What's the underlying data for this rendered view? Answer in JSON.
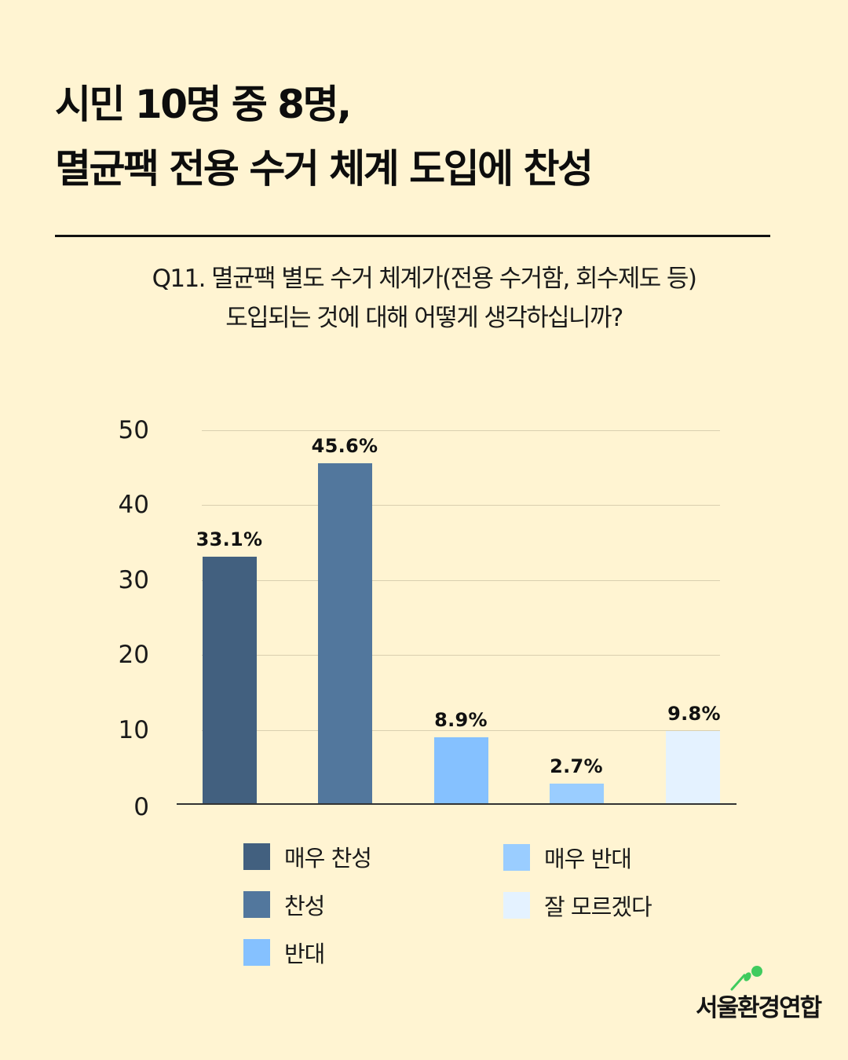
{
  "header": {
    "title_lines": [
      "시민 10명 중 8명,",
      "멸균팩 전용 수거 체계 도입에 찬성"
    ]
  },
  "question": {
    "lines": [
      "Q11. 멸균팩 별도 수거 체계가(전용 수거함, 회수제도 등)",
      "도입되는 것에 대해 어떻게 생각하십니까?"
    ]
  },
  "colors": {
    "background": "#FFF4D2",
    "strongly_agree": "#42607F",
    "agree": "#52779D",
    "disagree": "#85C1FF",
    "strongly_disagree": "#9ACDFF",
    "dont_know": "#E4F2FF"
  },
  "chart_data": {
    "type": "bar",
    "title": "Q11. 멸균팩 별도 수거 체계가(전용 수거함, 회수제도 등) 도입되는 것에 대해 어떻게 생각하십니까?",
    "categories": [
      "매우 찬성",
      "찬성",
      "반대",
      "매우 반대",
      "잘 모르겠다"
    ],
    "values": [
      33.1,
      45.6,
      8.9,
      2.7,
      9.8
    ],
    "value_labels": [
      "33.1%",
      "45.6%",
      "8.9%",
      "2.7%",
      "9.8%"
    ],
    "colors": [
      "#42607F",
      "#52779D",
      "#85C1FF",
      "#9ACDFF",
      "#E4F2FF"
    ],
    "xlabel": "",
    "ylabel": "",
    "ylim": [
      0,
      50
    ],
    "yticks": [
      0,
      10,
      20,
      30,
      40,
      50
    ],
    "grid": true,
    "legend_position": "bottom",
    "legend": [
      "매우 찬성",
      "찬성",
      "반대",
      "매우 반대",
      "잘 모르겠다"
    ]
  },
  "yaxis": {
    "ticks": [
      "50",
      "40",
      "30",
      "20",
      "10",
      "0"
    ]
  },
  "legend": {
    "items": [
      {
        "label": "매우 찬성",
        "color": "#42607F"
      },
      {
        "label": "찬성",
        "color": "#52779D"
      },
      {
        "label": "반대",
        "color": "#85C1FF"
      },
      {
        "label": "매우 반대",
        "color": "#9ACDFF"
      },
      {
        "label": "잘 모르겠다",
        "color": "#E4F2FF"
      }
    ]
  },
  "logo": {
    "text": "서울환경연합",
    "dot_color": "#3FCB5E"
  }
}
